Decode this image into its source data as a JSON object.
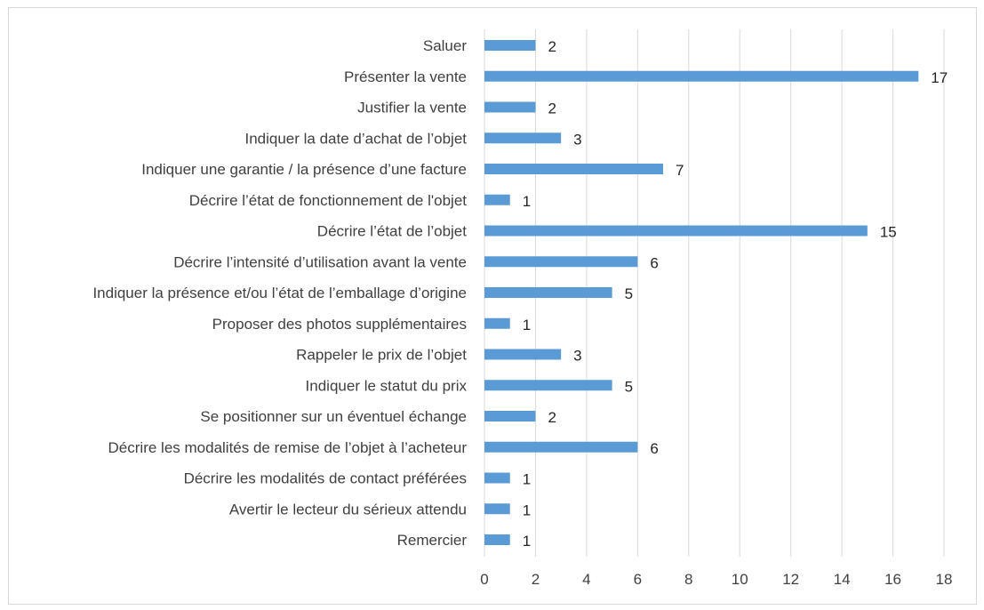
{
  "chart_data": {
    "type": "bar",
    "orientation": "horizontal",
    "categories": [
      "Saluer",
      "Présenter la vente ",
      "Justifier la vente",
      "Indiquer la date d’achat de l’objet",
      "Indiquer une garantie / la présence d’une facture",
      "Décrire l’état de fonctionnement de l'objet",
      "Décrire l’état de l’objet",
      "Décrire l’intensité d’utilisation avant la vente",
      "Indiquer la présence et/ou l’état de l’emballage d’origine",
      "Proposer des photos supplémentaires",
      "Rappeler le prix de l’objet",
      "Indiquer le statut du prix",
      "Se positionner sur un éventuel échange",
      "Décrire les modalités de remise de l’objet à l’acheteur",
      "Décrire les modalités de contact préférées",
      "Avertir le lecteur du sérieux attendu",
      "Remercier"
    ],
    "values": [
      2,
      17,
      2,
      3,
      7,
      1,
      15,
      6,
      5,
      1,
      3,
      5,
      2,
      6,
      1,
      1,
      1
    ],
    "xlim": [
      0,
      18
    ],
    "x_ticks": [
      0,
      2,
      4,
      6,
      8,
      10,
      12,
      14,
      16,
      18
    ],
    "x_tick_labels": [
      "0",
      "2",
      "4",
      "6",
      "8",
      "10",
      "12",
      "14",
      "16",
      "18"
    ],
    "title": "",
    "xlabel": "",
    "ylabel": "",
    "grid": "vertical",
    "legend": "none",
    "data_labels": true,
    "colors": {
      "bar": "#5b9bd5",
      "grid": "#d9d9d9",
      "text": "#404040",
      "border": "#d9d9d9"
    }
  }
}
